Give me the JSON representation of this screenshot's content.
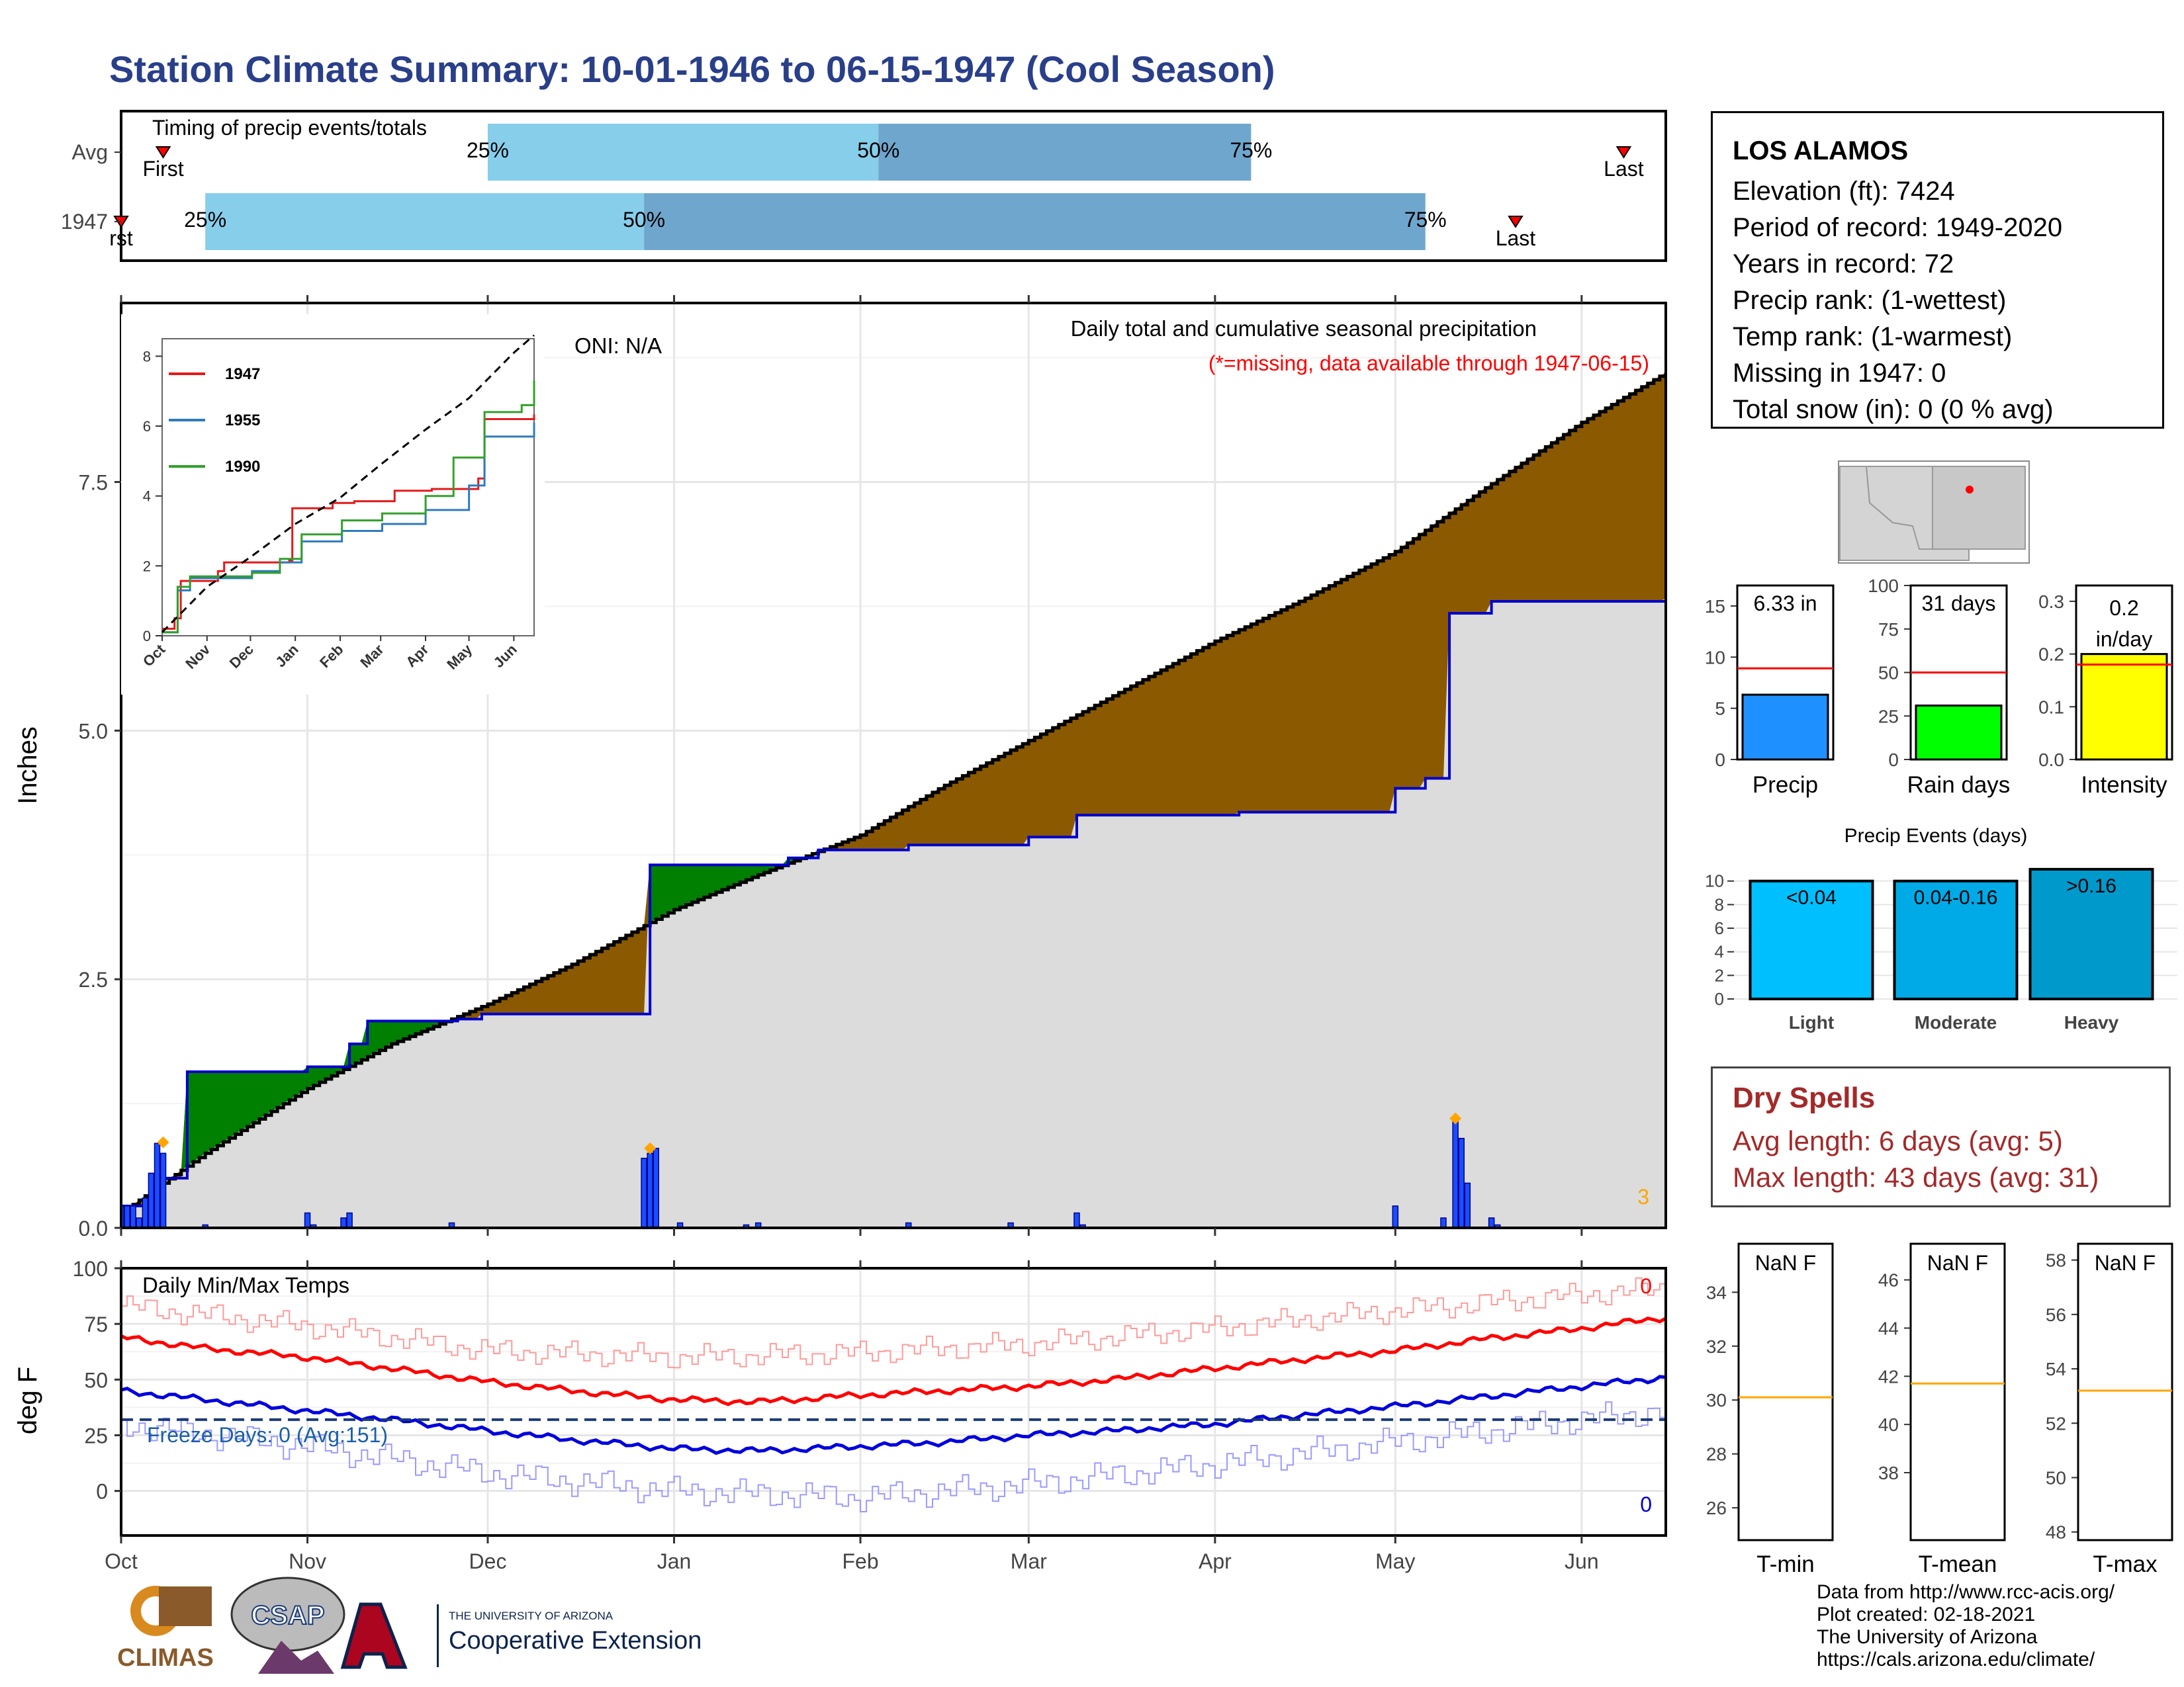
{
  "title": "Station Climate Summary: 10-01-1946 to 06-15-1947 (Cool Season)",
  "timing": {
    "heading": "Timing of precip events/totals",
    "rows": [
      {
        "label": "Avg",
        "first_label": "First",
        "last_label": "Last",
        "first_date": "1946-10-08",
        "last_date": "1947-06-08",
        "p25": "1946-12-01",
        "p50": "1947-02-04",
        "p75": "1947-04-07"
      },
      {
        "label": "1947",
        "first_label": "rst",
        "last_label": "Last",
        "first_date": "1946-10-01",
        "last_date": "1947-05-21",
        "p25": "1946-10-15",
        "p50": "1946-12-27",
        "p75": "1947-05-06"
      }
    ],
    "pct_labels": [
      "25%",
      "50%",
      "75%"
    ]
  },
  "station": {
    "name": "LOS ALAMOS",
    "lines": [
      "Elevation (ft): 7424",
      "Period of record: 1949-2020",
      "Years in record: 72",
      "Precip rank:  (1-wettest)",
      "Temp rank:  (1-warmest)",
      "Missing in 1947: 0",
      "Total snow (in): 0 (0 % avg)"
    ]
  },
  "colors": {
    "title": "#2a3f8a",
    "above_avg_fill": "#008000",
    "below_avg_fill": "#8b5a00",
    "avg_fill": "#dcdcdc",
    "obs_line": "#0000cc",
    "daily_bar": "#1a4dff",
    "tmax": "#ff0000",
    "tmin": "#0000dd",
    "precip_bar": "#1e90ff",
    "raindays_bar": "#00ff00",
    "intensity_bar": "#ffff00",
    "events_bar": "#00aacc",
    "dry_text": "#a32a2a"
  },
  "main_chart": {
    "annotation_oni": "ONI: N/A",
    "annotation_title": "Daily total and cumulative seasonal precipitation",
    "annotation_missing": "(*=missing, data available through 1947-06-15)",
    "corner_count": "3",
    "ylabel": "Inches",
    "yticks": [
      "0.0",
      "2.5",
      "5.0",
      "7.5"
    ]
  },
  "temp_chart": {
    "title": "Daily Min/Max Temps",
    "ylabel": "deg F",
    "yticks": [
      "0",
      "25",
      "50",
      "75",
      "100"
    ],
    "freeze_text": "Freeze Days: 0 (Avg:151)",
    "max_count": "0",
    "min_count": "0",
    "freeze_line": 32,
    "months": [
      "Oct",
      "Nov",
      "Dec",
      "Jan",
      "Feb",
      "Mar",
      "Apr",
      "May",
      "Jun"
    ]
  },
  "inset": {
    "months": [
      "Oct",
      "Nov",
      "Dec",
      "Jan",
      "Feb",
      "Mar",
      "Apr",
      "May",
      "Jun"
    ],
    "yticks": [
      "0",
      "2",
      "4",
      "6",
      "8"
    ],
    "legend": [
      {
        "name": "1947",
        "color": "#e31a1c"
      },
      {
        "name": "1955",
        "color": "#2f7bbf"
      },
      {
        "name": "1990",
        "color": "#33a02c"
      }
    ]
  },
  "summary_bars": [
    {
      "name": "Precip",
      "label": "6.33 in",
      "value": 6.33,
      "avg": 8.9,
      "ylim": [
        0,
        17
      ],
      "ticks": [
        "0",
        "5",
        "10",
        "15"
      ]
    },
    {
      "name": "Rain days",
      "label": "31 days",
      "value": 31,
      "avg": 50,
      "ylim": [
        0,
        100
      ],
      "ticks": [
        "0",
        "25",
        "50",
        "75",
        "100"
      ]
    },
    {
      "name": "Intensity",
      "label": "0.2 in/day",
      "value": 0.2,
      "avg": 0.18,
      "ylim": [
        0,
        0.33
      ],
      "ticks": [
        "0.0",
        "0.1",
        "0.2",
        "0.3"
      ]
    }
  ],
  "events": {
    "title": "Precip Events (days)",
    "categories": [
      "Light",
      "Moderate",
      "Heavy"
    ],
    "bar_labels": [
      "<0.04",
      "0.04-0.16",
      ">0.16"
    ],
    "values": [
      10,
      10,
      11
    ],
    "yticks": [
      "0",
      "2",
      "4",
      "6",
      "8",
      "10"
    ]
  },
  "dry_spells": {
    "title": "Dry Spells",
    "avg_line": "Avg length: 6 days (avg: 5)",
    "max_line": "Max length: 43 days (avg: 31)"
  },
  "temp_panels": [
    {
      "name": "T-min",
      "label": "NaN F",
      "avg": 30.1,
      "ylim": [
        24.8,
        35.8
      ],
      "ticks": [
        "26",
        "28",
        "30",
        "32",
        "34"
      ]
    },
    {
      "name": "T-mean",
      "label": "NaN F",
      "avg": 41.7,
      "ylim": [
        35.2,
        47.5
      ],
      "ticks": [
        "38",
        "40",
        "42",
        "44",
        "46"
      ]
    },
    {
      "name": "T-max",
      "label": "NaN F",
      "avg": 53.2,
      "ylim": [
        47.7,
        58.6
      ],
      "ticks": [
        "48",
        "50",
        "52",
        "54",
        "56",
        "58"
      ]
    }
  ],
  "footer": [
    "Data from http://www.rcc-acis.org/",
    "Plot created: 02-18-2021",
    "The University of Arizona",
    "https://cals.arizona.edu/climate/"
  ],
  "logos": {
    "climas": "CLIMAS",
    "csap": "CSAP",
    "ua_small": "THE UNIVERSITY OF ARIZONA",
    "ua_big": "Cooperative Extension"
  },
  "chart_data": [
    {
      "type": "area",
      "title": "Daily total and cumulative seasonal precipitation",
      "ylabel": "Inches",
      "ylim": [
        0,
        9.3
      ],
      "x_range": [
        "1946-10-01",
        "1947-06-15"
      ],
      "avg_cumulative": {
        "x": [
          "1946-10-01",
          "1946-10-15",
          "1946-11-01",
          "1946-11-15",
          "1946-12-01",
          "1946-12-15",
          "1947-01-01",
          "1947-01-15",
          "1947-02-01",
          "1947-02-15",
          "1947-03-01",
          "1947-03-15",
          "1947-04-01",
          "1947-04-15",
          "1947-05-01",
          "1947-05-15",
          "1947-06-01",
          "1947-06-15"
        ],
        "y": [
          0.15,
          0.75,
          1.4,
          1.85,
          2.25,
          2.65,
          3.2,
          3.55,
          3.95,
          4.45,
          4.9,
          5.35,
          5.9,
          6.3,
          6.8,
          7.4,
          8.1,
          8.6
        ]
      },
      "observed_cumulative": {
        "x": [
          "1946-10-01",
          "1946-10-06",
          "1946-10-07",
          "1946-10-12",
          "1946-11-01",
          "1946-11-08",
          "1946-11-11",
          "1946-11-26",
          "1946-11-30",
          "1946-12-27",
          "1946-12-28",
          "1947-01-20",
          "1947-01-25",
          "1947-02-09",
          "1947-03-01",
          "1947-03-08",
          "1947-03-09",
          "1947-04-05",
          "1947-05-01",
          "1947-05-06",
          "1947-05-10",
          "1947-05-17",
          "1947-06-15"
        ],
        "y": [
          0.22,
          0.32,
          0.5,
          1.57,
          1.62,
          1.85,
          2.08,
          2.1,
          2.15,
          2.15,
          3.65,
          3.72,
          3.8,
          3.85,
          3.93,
          3.93,
          4.15,
          4.18,
          4.42,
          4.52,
          6.18,
          6.3,
          6.33
        ]
      },
      "daily_precip": {
        "x": [
          "1946-10-01",
          "1946-10-02",
          "1946-10-03",
          "1946-10-04",
          "1946-10-05",
          "1946-10-06",
          "1946-10-07",
          "1946-10-08",
          "1946-10-15",
          "1946-11-01",
          "1946-11-02",
          "1946-11-07",
          "1946-11-08",
          "1946-11-25",
          "1946-12-27",
          "1946-12-28",
          "1946-12-29",
          "1947-01-02",
          "1947-01-13",
          "1947-01-15",
          "1947-02-09",
          "1947-02-26",
          "1947-03-09",
          "1947-03-10",
          "1947-05-01",
          "1947-05-09",
          "1947-05-11",
          "1947-05-12",
          "1947-05-13",
          "1947-05-17",
          "1947-05-18"
        ],
        "y": [
          0.22,
          0.22,
          0.22,
          0.1,
          0.3,
          0.55,
          0.85,
          0.75,
          0.03,
          0.15,
          0.03,
          0.1,
          0.15,
          0.05,
          0.7,
          0.75,
          0.8,
          0.05,
          0.03,
          0.05,
          0.05,
          0.05,
          0.15,
          0.03,
          0.22,
          0.1,
          1.08,
          0.9,
          0.45,
          0.1,
          0.03
        ]
      },
      "markers": [
        {
          "x": "1946-10-08",
          "y": 0.86
        },
        {
          "x": "1946-12-28",
          "y": 0.8
        },
        {
          "x": "1947-05-11",
          "y": 1.1
        }
      ]
    },
    {
      "type": "line",
      "title": "",
      "xlabel": "",
      "ylabel": "",
      "ylim": [
        0,
        8.5
      ],
      "x_range": [
        "1946-10-01",
        "1947-06-15"
      ],
      "series": [
        {
          "name": "1947",
          "x": [
            "1946-10-01",
            "1946-10-08",
            "1946-10-12",
            "1946-11-08",
            "1946-11-11",
            "1946-12-27",
            "1946-12-28",
            "1947-01-25",
            "1947-02-09",
            "1947-03-09",
            "1947-04-05",
            "1947-05-06",
            "1947-05-11",
            "1947-06-15"
          ],
          "y": [
            0.2,
            0.5,
            1.57,
            1.85,
            2.1,
            2.15,
            3.65,
            3.8,
            3.85,
            4.15,
            4.2,
            4.5,
            6.2,
            6.33
          ]
        },
        {
          "name": "1955",
          "x": [
            "1946-10-01",
            "1946-10-10",
            "1946-10-20",
            "1946-12-01",
            "1946-12-20",
            "1947-01-05",
            "1947-02-01",
            "1947-03-01",
            "1947-04-01",
            "1947-05-01",
            "1947-05-10",
            "1947-06-15"
          ],
          "y": [
            0.1,
            1.3,
            1.65,
            1.85,
            2.1,
            2.7,
            3.0,
            3.2,
            3.6,
            4.3,
            5.7,
            6.1
          ]
        },
        {
          "name": "1990",
          "x": [
            "1946-10-01",
            "1946-10-10",
            "1946-10-20",
            "1946-12-01",
            "1946-12-20",
            "1947-01-05",
            "1947-02-01",
            "1947-03-01",
            "1947-04-01",
            "1947-04-20",
            "1947-05-10",
            "1947-06-05",
            "1947-06-15"
          ],
          "y": [
            0.1,
            1.4,
            1.7,
            1.8,
            2.2,
            2.9,
            3.3,
            3.5,
            4.0,
            5.1,
            6.4,
            6.6,
            7.3
          ]
        },
        {
          "name": "",
          "x": [
            "1946-10-01",
            "1946-11-01",
            "1946-12-01",
            "1947-01-01",
            "1947-02-01",
            "1947-03-01",
            "1947-04-01",
            "1947-05-01",
            "1947-06-01",
            "1947-06-15"
          ],
          "y": [
            0.1,
            1.4,
            2.25,
            3.2,
            3.95,
            4.9,
            5.9,
            6.8,
            8.1,
            8.6
          ]
        }
      ]
    },
    {
      "type": "line",
      "title": "Daily Min/Max Temps",
      "ylabel": "deg F",
      "ylim": [
        -20,
        100
      ],
      "x_range": [
        "1946-10-01",
        "1947-06-15"
      ],
      "series": [
        {
          "name": "",
          "x": [
            "1946-10-01",
            "1946-11-01",
            "1946-12-01",
            "1947-01-01",
            "1947-02-01",
            "1947-03-01",
            "1947-04-01",
            "1947-05-01",
            "1947-06-01",
            "1947-06-15"
          ],
          "y": [
            83,
            74,
            63,
            60,
            62,
            66,
            73,
            81,
            88,
            91
          ]
        },
        {
          "name": "",
          "x": [
            "1946-10-01",
            "1946-10-15",
            "1946-11-01",
            "1946-11-15",
            "1946-12-01",
            "1946-12-15",
            "1947-01-01",
            "1947-01-15",
            "1947-02-01",
            "1947-02-15",
            "1947-03-01",
            "1947-03-15",
            "1947-04-01",
            "1947-04-15",
            "1947-05-01",
            "1947-05-15",
            "1947-06-01",
            "1947-06-15"
          ],
          "y": [
            69,
            64,
            60,
            55,
            49,
            45,
            41,
            40,
            43,
            45,
            47,
            50,
            55,
            59,
            63,
            68,
            73,
            78
          ]
        },
        {
          "name": "",
          "x": [
            "1946-10-01",
            "1946-10-15",
            "1946-11-01",
            "1946-11-15",
            "1946-12-01",
            "1946-12-15",
            "1947-01-01",
            "1947-01-15",
            "1947-02-01",
            "1947-02-15",
            "1947-03-01",
            "1947-03-15",
            "1947-04-01",
            "1947-04-15",
            "1947-05-01",
            "1947-05-15",
            "1947-06-01",
            "1947-06-15"
          ],
          "y": [
            45,
            41,
            36,
            32,
            27,
            23,
            19,
            18,
            20,
            22,
            25,
            27,
            30,
            34,
            38,
            42,
            47,
            51
          ]
        },
        {
          "name": "",
          "x": [
            "1946-10-01",
            "1946-11-01",
            "1946-12-01",
            "1947-01-01",
            "1947-02-01",
            "1947-03-01",
            "1947-04-01",
            "1947-05-01",
            "1947-06-01",
            "1947-06-15"
          ],
          "y": [
            30,
            20,
            8,
            0,
            -3,
            3,
            12,
            22,
            32,
            36
          ]
        }
      ]
    },
    {
      "type": "bar",
      "title": "Precip Events (days)",
      "categories": [
        "Light",
        "Moderate",
        "Heavy"
      ],
      "values": [
        10,
        10,
        11
      ]
    }
  ]
}
